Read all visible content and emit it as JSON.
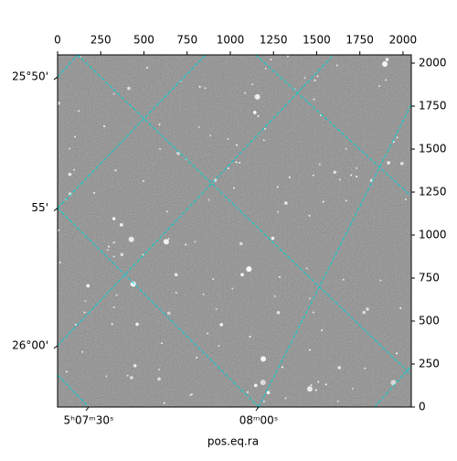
{
  "chart_data": {
    "type": "image",
    "xlabel": "pos.eq.ra",
    "xlim": [
      0,
      2048
    ],
    "ylim": [
      0,
      2048
    ],
    "xticks": [
      0,
      250,
      500,
      750,
      1000,
      1250,
      1500,
      1750,
      2000
    ],
    "yticks": [
      0,
      250,
      500,
      750,
      1000,
      1250,
      1500,
      1750,
      2000
    ],
    "ra_ticks": [
      {
        "value": 180,
        "label": "5ʰ07ᵐ30ˢ"
      },
      {
        "value": 1164,
        "label": "08ᵐ00ˢ"
      }
    ],
    "dec_ticks": [
      {
        "value": 1920,
        "label": "25°50'"
      },
      {
        "value": 1157,
        "label": "55'"
      },
      {
        "value": 357,
        "label": "26°00'"
      }
    ],
    "grid": true,
    "grid_color": "#00d0d0",
    "grid_lines": [
      [
        [
          116,
          2048
        ],
        [
          2048,
          187
        ]
      ],
      [
        [
          0,
          1157
        ],
        [
          1164,
          0
        ]
      ],
      [
        [
          1148,
          2048
        ],
        [
          2048,
          1227
        ]
      ],
      [
        [
          0,
          187
        ],
        [
          180,
          0
        ]
      ],
      [
        [
          0,
          1920
        ],
        [
          116,
          2048
        ]
      ],
      [
        [
          0,
          1157
        ],
        [
          857,
          2048
        ]
      ],
      [
        [
          0,
          357
        ],
        [
          1598,
          2048
        ]
      ],
      [
        [
          1164,
          0
        ],
        [
          2048,
          1760
        ]
      ],
      [
        [
          1836,
          0
        ],
        [
          2048,
          240
        ]
      ]
    ]
  }
}
